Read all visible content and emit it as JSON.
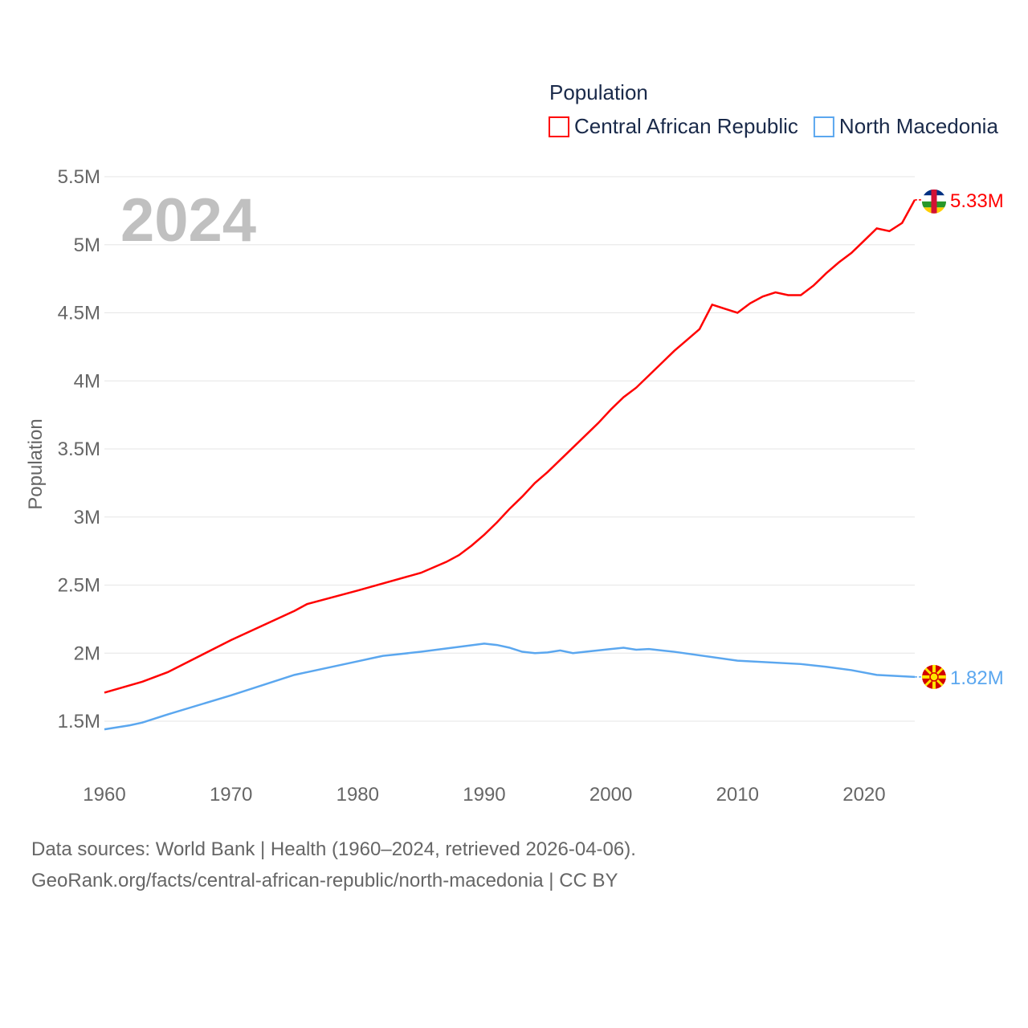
{
  "chart_data": {
    "type": "line",
    "year_label": "2024",
    "ylabel": "Population",
    "legend_title": "Population",
    "legend_position": "top-right",
    "ylim": [
      1500000,
      5500000
    ],
    "xlim": [
      1960,
      2024
    ],
    "yticks": [
      {
        "v": 1500000,
        "label": "1.5M"
      },
      {
        "v": 2000000,
        "label": "2M"
      },
      {
        "v": 2500000,
        "label": "2.5M"
      },
      {
        "v": 3000000,
        "label": "3M"
      },
      {
        "v": 3500000,
        "label": "3.5M"
      },
      {
        "v": 4000000,
        "label": "4M"
      },
      {
        "v": 4500000,
        "label": "4.5M"
      },
      {
        "v": 5000000,
        "label": "5M"
      },
      {
        "v": 5500000,
        "label": "5.5M"
      }
    ],
    "xticks": [
      1960,
      1970,
      1980,
      1990,
      2000,
      2010,
      2020
    ],
    "series": [
      {
        "name": "Central African Republic",
        "color": "#ff0000",
        "end_label": "5.33M",
        "flag": "central-african-republic-flag",
        "x": [
          1960,
          1963,
          1965,
          1970,
          1975,
          1976,
          1980,
          1985,
          1987,
          1988,
          1989,
          1990,
          1991,
          1992,
          1993,
          1994,
          1995,
          1996,
          1997,
          1998,
          1999,
          2000,
          2001,
          2002,
          2003,
          2004,
          2005,
          2006,
          2007,
          2008,
          2009,
          2010,
          2011,
          2012,
          2013,
          2014,
          2015,
          2016,
          2017,
          2018,
          2019,
          2020,
          2021,
          2022,
          2023,
          2024
        ],
        "values": [
          1710000,
          1790000,
          1860000,
          2096000,
          2310000,
          2360000,
          2460000,
          2590000,
          2670000,
          2720000,
          2790000,
          2870000,
          2960000,
          3060000,
          3150000,
          3250000,
          3330000,
          3420000,
          3510000,
          3600000,
          3690000,
          3790000,
          3880000,
          3950000,
          4040000,
          4130000,
          4220000,
          4300000,
          4380000,
          4560000,
          4530000,
          4500000,
          4570000,
          4620000,
          4650000,
          4630000,
          4630000,
          4700000,
          4790000,
          4870000,
          4940000,
          5030000,
          5120000,
          5100000,
          5160000,
          5330000
        ]
      },
      {
        "name": "North Macedonia",
        "color": "#5ba7ef",
        "end_label": "1.82M",
        "flag": "north-macedonia-flag",
        "x": [
          1960,
          1962,
          1963,
          1965,
          1970,
          1975,
          1980,
          1981,
          1982,
          1983,
          1985,
          1990,
          1991,
          1992,
          1993,
          1994,
          1995,
          1996,
          1997,
          1998,
          2000,
          2001,
          2002,
          2003,
          2004,
          2005,
          2010,
          2015,
          2017,
          2019,
          2021,
          2024
        ],
        "values": [
          1440000,
          1470000,
          1490000,
          1550000,
          1690000,
          1840000,
          1940000,
          1960000,
          1980000,
          1990000,
          2010000,
          2070000,
          2060000,
          2040000,
          2010000,
          2000000,
          2005000,
          2020000,
          2000000,
          2010000,
          2030000,
          2040000,
          2025000,
          2030000,
          2020000,
          2010000,
          1945000,
          1920000,
          1900000,
          1875000,
          1840000,
          1825000
        ]
      }
    ]
  },
  "footer": {
    "line1": "Data sources: World Bank | Health (1960–2024, retrieved 2026-04-06).",
    "line2": "GeoRank.org/facts/central-african-republic/north-macedonia | CC BY"
  }
}
